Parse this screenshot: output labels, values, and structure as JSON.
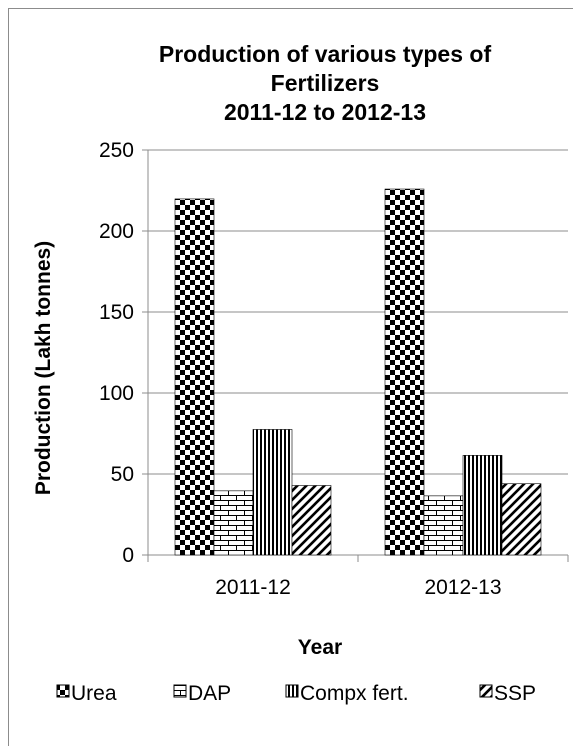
{
  "chart_data": {
    "type": "bar",
    "title_lines": [
      "Production of various types of",
      "Fertilizers",
      "2011-12 to 2012-13"
    ],
    "xlabel": "Year",
    "ylabel": "Production (Lakh tonnes)",
    "categories": [
      "2011-12",
      "2012-13"
    ],
    "ylim": [
      0,
      250
    ],
    "yticks": [
      0,
      50,
      100,
      150,
      200,
      250
    ],
    "grid": true,
    "legend_position": "bottom",
    "series": [
      {
        "name": "Urea",
        "values": [
          219.8,
          225.9
        ],
        "pattern": "checker"
      },
      {
        "name": "DAP",
        "values": [
          39.6,
          36.5
        ],
        "pattern": "brick"
      },
      {
        "name": "Compx fert.",
        "values": [
          77.5,
          61.5
        ],
        "pattern": "vertical-lines"
      },
      {
        "name": "SSP",
        "values": [
          42.9,
          44.0
        ],
        "pattern": "diagonal-lines"
      }
    ]
  }
}
